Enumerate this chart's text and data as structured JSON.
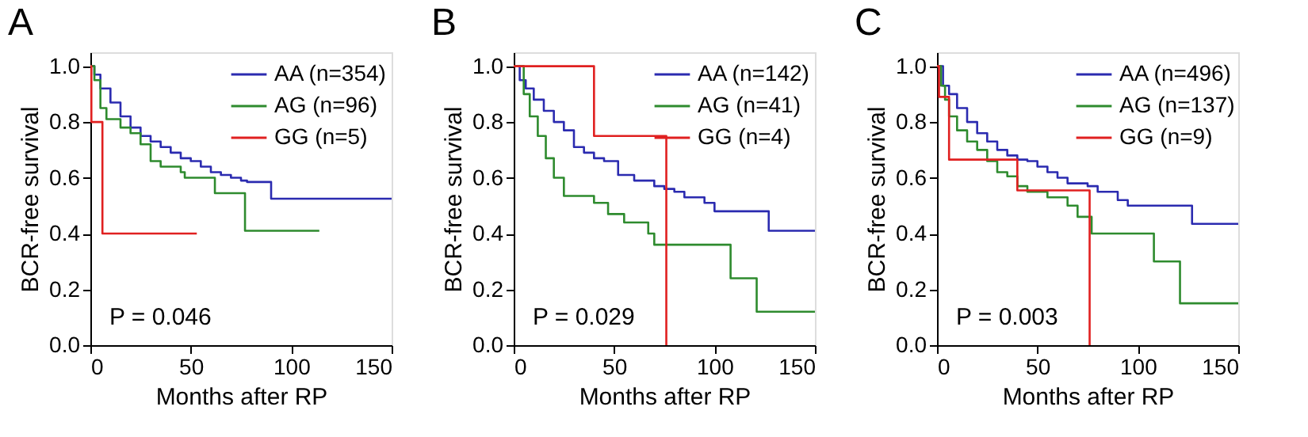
{
  "chart_data": [
    {
      "type": "step",
      "title": "A",
      "xlabel": "Months after RP",
      "ylabel": "BCR-free survival",
      "xlim": [
        0,
        150
      ],
      "xticks": [
        0,
        50,
        100,
        150
      ],
      "ylim": [
        0,
        1.05
      ],
      "yticks": [
        {
          "value": 0,
          "label": "0.0"
        },
        {
          "value": 0.2,
          "label": "0.2"
        },
        {
          "value": 0.4,
          "label": "0.4"
        },
        {
          "value": 0.6,
          "label": "0.6"
        },
        {
          "value": 0.8,
          "label": "0.8"
        },
        {
          "value": 1,
          "label": "1.0"
        }
      ],
      "legend": "top right",
      "annotations": [
        "P = 0.046"
      ],
      "series": [
        {
          "name": "AA (n=354)",
          "color": "#2b2bb0",
          "x": [
            0,
            2,
            5,
            10,
            15,
            20,
            25,
            30,
            35,
            40,
            45,
            50,
            55,
            60,
            65,
            70,
            75,
            78,
            90,
            150
          ],
          "values": [
            1,
            0.97,
            0.92,
            0.87,
            0.82,
            0.78,
            0.75,
            0.73,
            0.71,
            0.69,
            0.67,
            0.66,
            0.64,
            0.62,
            0.61,
            0.6,
            0.59,
            0.585,
            0.525,
            0.525
          ]
        },
        {
          "name": "AG (n=96)",
          "color": "#2e8b2e",
          "x": [
            0,
            2,
            5,
            8,
            15,
            20,
            25,
            30,
            35,
            45,
            47,
            62,
            77,
            114
          ],
          "values": [
            1,
            0.95,
            0.85,
            0.81,
            0.78,
            0.76,
            0.72,
            0.66,
            0.64,
            0.62,
            0.6,
            0.545,
            0.41,
            0.41
          ]
        },
        {
          "name": "GG (n=5)",
          "color": "#e02020",
          "x": [
            0,
            0.5,
            6,
            53
          ],
          "values": [
            1,
            0.8,
            0.4,
            0.4
          ]
        }
      ]
    },
    {
      "type": "step",
      "title": "B",
      "xlabel": "Months after RP",
      "ylabel": "BCR-free survival",
      "xlim": [
        0,
        150
      ],
      "xticks": [
        0,
        50,
        100,
        150
      ],
      "ylim": [
        0,
        1.05
      ],
      "yticks": [
        {
          "value": 0,
          "label": "0.0"
        },
        {
          "value": 0.2,
          "label": "0.2"
        },
        {
          "value": 0.4,
          "label": "0.4"
        },
        {
          "value": 0.6,
          "label": "0.6"
        },
        {
          "value": 0.8,
          "label": "0.8"
        },
        {
          "value": 1,
          "label": "1.0"
        }
      ],
      "legend": "top right",
      "annotations": [
        "P = 0.029"
      ],
      "series": [
        {
          "name": "AA (n=142)",
          "color": "#2b2bb0",
          "x": [
            0,
            3,
            6,
            10,
            15,
            20,
            25,
            30,
            35,
            40,
            45,
            52,
            60,
            70,
            75,
            80,
            85,
            95,
            100,
            127,
            150
          ],
          "values": [
            1,
            0.95,
            0.92,
            0.88,
            0.84,
            0.8,
            0.77,
            0.71,
            0.69,
            0.67,
            0.66,
            0.61,
            0.59,
            0.57,
            0.56,
            0.55,
            0.53,
            0.51,
            0.48,
            0.41,
            0.41
          ]
        },
        {
          "name": "AG (n=41)",
          "color": "#2e8b2e",
          "x": [
            0,
            5,
            8,
            12,
            16,
            20,
            25,
            40,
            47,
            55,
            67,
            70,
            108,
            121,
            150
          ],
          "values": [
            1,
            0.9,
            0.82,
            0.75,
            0.67,
            0.6,
            0.535,
            0.51,
            0.47,
            0.44,
            0.4,
            0.36,
            0.24,
            0.12,
            0.12
          ]
        },
        {
          "name": "GG (n=4)",
          "color": "#e02020",
          "x": [
            0,
            40,
            76
          ],
          "values": [
            1,
            0.75,
            0
          ]
        }
      ]
    },
    {
      "type": "step",
      "title": "C",
      "xlabel": "Months after RP",
      "ylabel": "BCR-free survival",
      "xlim": [
        0,
        150
      ],
      "xticks": [
        0,
        50,
        100,
        150
      ],
      "ylim": [
        0,
        1.05
      ],
      "yticks": [
        {
          "value": 0,
          "label": "0.0"
        },
        {
          "value": 0.2,
          "label": "0.2"
        },
        {
          "value": 0.4,
          "label": "0.4"
        },
        {
          "value": 0.6,
          "label": "0.6"
        },
        {
          "value": 0.8,
          "label": "0.8"
        },
        {
          "value": 1,
          "label": "1.0"
        }
      ],
      "legend": "top right",
      "annotations": [
        "P = 0.003"
      ],
      "series": [
        {
          "name": "AA (n=496)",
          "color": "#2b2bb0",
          "x": [
            0,
            3,
            6,
            10,
            15,
            20,
            25,
            30,
            35,
            40,
            45,
            50,
            55,
            60,
            65,
            75,
            80,
            90,
            95,
            127,
            150
          ],
          "values": [
            1,
            0.93,
            0.9,
            0.85,
            0.8,
            0.76,
            0.73,
            0.7,
            0.68,
            0.665,
            0.66,
            0.64,
            0.62,
            0.6,
            0.58,
            0.57,
            0.55,
            0.52,
            0.5,
            0.435,
            0.435
          ]
        },
        {
          "name": "AG (n=137)",
          "color": "#2e8b2e",
          "x": [
            0,
            2,
            4,
            6,
            10,
            15,
            20,
            25,
            30,
            35,
            40,
            45,
            55,
            65,
            70,
            77,
            108,
            121,
            150
          ],
          "values": [
            1,
            0.93,
            0.88,
            0.82,
            0.77,
            0.73,
            0.7,
            0.66,
            0.62,
            0.605,
            0.57,
            0.55,
            0.53,
            0.5,
            0.46,
            0.4,
            0.3,
            0.15,
            0.15
          ]
        },
        {
          "name": "GG (n=9)",
          "color": "#e02020",
          "x": [
            0,
            1,
            6,
            40,
            76
          ],
          "values": [
            1,
            0.89,
            0.665,
            0.555,
            0
          ]
        }
      ]
    }
  ]
}
